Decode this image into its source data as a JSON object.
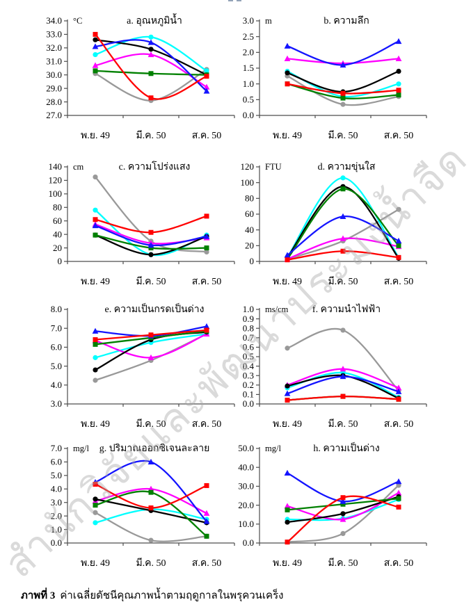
{
  "page": {
    "watermark": "สำนักวิจัยและพัฒนาประมงน้ำจืด",
    "caption_label": "ภาพที่ 3",
    "caption_text": "ค่าเฉลี่ยดัชนีคุณภาพน้ำตามฤดูกาลในพรุควนเคร็ง"
  },
  "chart_data": [
    {
      "type": "line",
      "title": "a. อุณหภูมิน้ำ",
      "unit": "°C",
      "categories": [
        "พ.ย. 49",
        "มี.ค. 50",
        "ส.ค. 50"
      ],
      "ylim": [
        27,
        34
      ],
      "yticks": [
        "34.0",
        "33.0",
        "32.0",
        "31.0",
        "30.0",
        "29.0",
        "28.0",
        "27.0"
      ],
      "series": [
        {
          "name": "gray-circle",
          "color": "#999999",
          "marker": "circle",
          "values": [
            30.1,
            28.1,
            30.4
          ]
        },
        {
          "name": "cyan-circle",
          "color": "#00ffff",
          "marker": "circle",
          "values": [
            31.5,
            32.8,
            30.3
          ]
        },
        {
          "name": "magenta-triangle",
          "color": "#ff00ff",
          "marker": "triangle",
          "values": [
            30.7,
            31.5,
            29.1
          ]
        },
        {
          "name": "black-circle",
          "color": "#000000",
          "marker": "circle",
          "values": [
            32.6,
            31.9,
            30.0
          ]
        },
        {
          "name": "green-square",
          "color": "#008000",
          "marker": "square",
          "values": [
            30.3,
            30.1,
            30.0
          ]
        },
        {
          "name": "blue-triangle",
          "color": "#1414ff",
          "marker": "triangle",
          "values": [
            32.1,
            32.4,
            28.8
          ]
        },
        {
          "name": "red-square",
          "color": "#ff0000",
          "marker": "square",
          "values": [
            33.0,
            28.3,
            29.9
          ]
        }
      ]
    },
    {
      "type": "line",
      "title": "b. ความลึก",
      "unit": "m",
      "categories": [
        "พ.ย. 49",
        "มี.ค. 50",
        "ส.ค. 50"
      ],
      "ylim": [
        0,
        3
      ],
      "yticks": [
        "3.0",
        "2.5",
        "2.0",
        "1.5",
        "1.0",
        "0.5",
        "0.0"
      ],
      "series": [
        {
          "name": "gray-circle",
          "color": "#999999",
          "marker": "circle",
          "values": [
            1.25,
            0.35,
            0.6
          ]
        },
        {
          "name": "cyan-circle",
          "color": "#00ffff",
          "marker": "circle",
          "values": [
            1.4,
            0.6,
            1.0
          ]
        },
        {
          "name": "magenta-triangle",
          "color": "#ff00ff",
          "marker": "triangle",
          "values": [
            1.8,
            1.65,
            1.8
          ]
        },
        {
          "name": "black-circle",
          "color": "#000000",
          "marker": "circle",
          "values": [
            1.35,
            0.75,
            1.4
          ]
        },
        {
          "name": "green-square",
          "color": "#008000",
          "marker": "square",
          "values": [
            1.0,
            0.55,
            0.65
          ]
        },
        {
          "name": "blue-triangle",
          "color": "#1414ff",
          "marker": "triangle",
          "values": [
            2.2,
            1.6,
            2.35
          ]
        },
        {
          "name": "red-square",
          "color": "#ff0000",
          "marker": "square",
          "values": [
            1.0,
            0.7,
            0.8
          ]
        }
      ]
    },
    {
      "type": "line",
      "title": "c. ความโปร่งแสง",
      "unit": "cm",
      "categories": [
        "พ.ย. 49",
        "มี.ค. 50",
        "ส.ค. 50"
      ],
      "ylim": [
        0,
        140
      ],
      "yticks": [
        "140",
        "120",
        "100",
        "80",
        "60",
        "40",
        "20",
        "0"
      ],
      "series": [
        {
          "name": "gray-circle",
          "color": "#999999",
          "marker": "circle",
          "values": [
            125,
            30,
            14
          ]
        },
        {
          "name": "cyan-circle",
          "color": "#00ffff",
          "marker": "circle",
          "values": [
            76,
            10,
            39
          ]
        },
        {
          "name": "magenta-triangle",
          "color": "#ff00ff",
          "marker": "triangle",
          "values": [
            55,
            27,
            35
          ]
        },
        {
          "name": "black-circle",
          "color": "#000000",
          "marker": "circle",
          "values": [
            39,
            10,
            37
          ]
        },
        {
          "name": "green-square",
          "color": "#008000",
          "marker": "square",
          "values": [
            39,
            20,
            20
          ]
        },
        {
          "name": "blue-triangle",
          "color": "#1414ff",
          "marker": "triangle",
          "values": [
            53,
            24,
            37
          ]
        },
        {
          "name": "red-square",
          "color": "#ff0000",
          "marker": "square",
          "values": [
            62,
            43,
            67
          ]
        }
      ]
    },
    {
      "type": "line",
      "title": "d. ความขุ่นใส",
      "unit": "FTU",
      "categories": [
        "พ.ย. 49",
        "มี.ค. 50",
        "ส.ค. 50"
      ],
      "ylim": [
        0,
        120
      ],
      "yticks": [
        "120",
        "100",
        "80",
        "60",
        "40",
        "20",
        "0"
      ],
      "series": [
        {
          "name": "gray-circle",
          "color": "#999999",
          "marker": "circle",
          "values": [
            3,
            26,
            66
          ]
        },
        {
          "name": "cyan-circle",
          "color": "#00ffff",
          "marker": "circle",
          "values": [
            5,
            106,
            5
          ]
        },
        {
          "name": "magenta-triangle",
          "color": "#ff00ff",
          "marker": "triangle",
          "values": [
            3,
            29,
            19
          ]
        },
        {
          "name": "black-circle",
          "color": "#000000",
          "marker": "circle",
          "values": [
            5,
            95,
            4
          ]
        },
        {
          "name": "green-square",
          "color": "#008000",
          "marker": "square",
          "values": [
            3,
            92,
            20
          ]
        },
        {
          "name": "blue-triangle",
          "color": "#1414ff",
          "marker": "triangle",
          "values": [
            8,
            57,
            26
          ]
        },
        {
          "name": "red-square",
          "color": "#ff0000",
          "marker": "square",
          "values": [
            2,
            13,
            5
          ]
        }
      ]
    },
    {
      "type": "line",
      "title": "e. ความเป็นกรดเป็นด่าง",
      "unit": "",
      "categories": [
        "พ.ย. 49",
        "มี.ค. 50",
        "ส.ค. 50"
      ],
      "ylim": [
        3,
        8
      ],
      "yticks": [
        "8.0",
        "7.0",
        "6.0",
        "5.0",
        "4.0",
        "3.0"
      ],
      "series": [
        {
          "name": "gray-circle",
          "color": "#999999",
          "marker": "circle",
          "values": [
            4.25,
            5.3,
            6.7
          ]
        },
        {
          "name": "cyan-circle",
          "color": "#00ffff",
          "marker": "circle",
          "values": [
            5.45,
            6.25,
            6.7
          ]
        },
        {
          "name": "magenta-triangle",
          "color": "#ff00ff",
          "marker": "triangle",
          "values": [
            6.35,
            5.45,
            6.7
          ]
        },
        {
          "name": "black-circle",
          "color": "#000000",
          "marker": "circle",
          "values": [
            4.8,
            6.4,
            6.8
          ]
        },
        {
          "name": "green-square",
          "color": "#008000",
          "marker": "square",
          "values": [
            6.15,
            6.5,
            6.85
          ]
        },
        {
          "name": "blue-triangle",
          "color": "#1414ff",
          "marker": "triangle",
          "values": [
            6.85,
            6.6,
            7.1
          ]
        },
        {
          "name": "red-square",
          "color": "#ff0000",
          "marker": "square",
          "values": [
            6.4,
            6.65,
            6.9
          ]
        }
      ]
    },
    {
      "type": "line",
      "title": "f. ความนำไฟฟ้า",
      "unit": "ms/cm",
      "categories": [
        "พ.ย. 49",
        "มี.ค. 50",
        "ส.ค. 50"
      ],
      "ylim": [
        0,
        1
      ],
      "yticks": [
        "1.0",
        "0.9",
        "0.8",
        "0.7",
        "0.6",
        "0.5",
        "0.4",
        "0.3",
        "0.2",
        "0.1",
        "0.0"
      ],
      "series": [
        {
          "name": "gray-circle",
          "color": "#999999",
          "marker": "circle",
          "values": [
            0.59,
            0.78,
            0.14
          ]
        },
        {
          "name": "cyan-circle",
          "color": "#00ffff",
          "marker": "circle",
          "values": [
            0.17,
            0.33,
            0.07
          ]
        },
        {
          "name": "magenta-triangle",
          "color": "#ff00ff",
          "marker": "triangle",
          "values": [
            0.2,
            0.37,
            0.17
          ]
        },
        {
          "name": "black-circle",
          "color": "#000000",
          "marker": "circle",
          "values": [
            0.19,
            0.3,
            0.06
          ]
        },
        {
          "name": "green-square",
          "color": "#008000",
          "marker": "square",
          "values": [
            0.04,
            0.08,
            0.05
          ]
        },
        {
          "name": "blue-triangle",
          "color": "#1414ff",
          "marker": "triangle",
          "values": [
            0.11,
            0.29,
            0.13
          ]
        },
        {
          "name": "red-square",
          "color": "#ff0000",
          "marker": "square",
          "values": [
            0.04,
            0.08,
            0.05
          ]
        }
      ]
    },
    {
      "type": "line",
      "title": "g. ปริมาณออกซิเจนละลาย",
      "unit": "mg/l",
      "categories": [
        "พ.ย. 49",
        "มี.ค. 50",
        "ส.ค. 50"
      ],
      "ylim": [
        0,
        7
      ],
      "yticks": [
        "7.0",
        "6.0",
        "5.0",
        "4.0",
        "3.0",
        "2.0",
        "1.0",
        "0.0"
      ],
      "series": [
        {
          "name": "gray-circle",
          "color": "#999999",
          "marker": "circle",
          "values": [
            2.25,
            0.2,
            0.5
          ]
        },
        {
          "name": "cyan-circle",
          "color": "#00ffff",
          "marker": "circle",
          "values": [
            1.5,
            2.5,
            1.75
          ]
        },
        {
          "name": "magenta-triangle",
          "color": "#ff00ff",
          "marker": "triangle",
          "values": [
            3.1,
            4.0,
            2.2
          ]
        },
        {
          "name": "black-circle",
          "color": "#000000",
          "marker": "circle",
          "values": [
            3.25,
            2.4,
            1.5
          ]
        },
        {
          "name": "green-square",
          "color": "#008000",
          "marker": "square",
          "values": [
            2.8,
            3.75,
            0.5
          ]
        },
        {
          "name": "blue-triangle",
          "color": "#1414ff",
          "marker": "triangle",
          "values": [
            4.5,
            6.0,
            1.6
          ]
        },
        {
          "name": "red-square",
          "color": "#ff0000",
          "marker": "square",
          "values": [
            4.35,
            2.6,
            4.25
          ]
        }
      ]
    },
    {
      "type": "line",
      "title": "h. ความเป็นด่าง",
      "unit": "mg/l",
      "categories": [
        "พ.ย. 49",
        "มี.ค. 50",
        "ส.ค. 50"
      ],
      "ylim": [
        0,
        50
      ],
      "yticks": [
        "50.0",
        "40.0",
        "30.0",
        "20.0",
        "10.0",
        "0.0"
      ],
      "series": [
        {
          "name": "gray-circle",
          "color": "#999999",
          "marker": "circle",
          "values": [
            0.5,
            5,
            30.5
          ]
        },
        {
          "name": "cyan-circle",
          "color": "#00ffff",
          "marker": "circle",
          "values": [
            12.5,
            13,
            23
          ]
        },
        {
          "name": "magenta-triangle",
          "color": "#ff00ff",
          "marker": "triangle",
          "values": [
            19.5,
            12.5,
            26.5
          ]
        },
        {
          "name": "black-circle",
          "color": "#000000",
          "marker": "circle",
          "values": [
            11,
            15.5,
            24.5
          ]
        },
        {
          "name": "green-square",
          "color": "#008000",
          "marker": "square",
          "values": [
            17.5,
            20.5,
            23.5
          ]
        },
        {
          "name": "blue-triangle",
          "color": "#1414ff",
          "marker": "triangle",
          "values": [
            37,
            22,
            32.5
          ]
        },
        {
          "name": "red-square",
          "color": "#ff0000",
          "marker": "square",
          "values": [
            0.5,
            24,
            19
          ]
        }
      ]
    }
  ]
}
